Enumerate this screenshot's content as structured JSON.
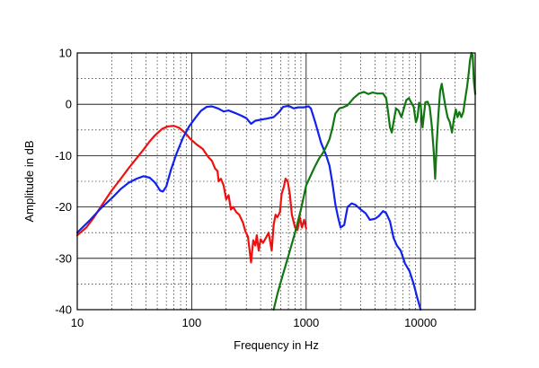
{
  "chart_data": {
    "type": "line",
    "title": "",
    "xlabel": "Frequency  in  Hz",
    "ylabel": "Amplitude in dB",
    "x_scale": "log",
    "xlim": [
      10,
      30000
    ],
    "ylim": [
      -40,
      10
    ],
    "grid": true,
    "x_tick_labels": [
      {
        "value": 10,
        "label": "10"
      },
      {
        "value": 100,
        "label": "100"
      },
      {
        "value": 1000,
        "label": "1000"
      },
      {
        "value": 10000,
        "label": "10000"
      }
    ],
    "y_tick_labels": [
      {
        "value": 10,
        "label": "10"
      },
      {
        "value": 0,
        "label": "0"
      },
      {
        "value": -10,
        "label": "-10"
      },
      {
        "value": -20,
        "label": "-20"
      },
      {
        "value": -30,
        "label": "-30"
      },
      {
        "value": -40,
        "label": "-40"
      }
    ],
    "series": [
      {
        "color": "#ee1111",
        "points": [
          [
            10,
            -25.5
          ],
          [
            12,
            -24
          ],
          [
            14,
            -22
          ],
          [
            16,
            -20
          ],
          [
            18,
            -18.3
          ],
          [
            20,
            -16.8
          ],
          [
            24,
            -14.5
          ],
          [
            28,
            -12.5
          ],
          [
            33,
            -10.5
          ],
          [
            38,
            -8.8
          ],
          [
            43,
            -7.2
          ],
          [
            48,
            -6
          ],
          [
            55,
            -4.8
          ],
          [
            62,
            -4.3
          ],
          [
            70,
            -4.2
          ],
          [
            78,
            -4.6
          ],
          [
            88,
            -5.6
          ],
          [
            98,
            -6.8
          ],
          [
            110,
            -7.8
          ],
          [
            125,
            -8.7
          ],
          [
            140,
            -10.3
          ],
          [
            150,
            -11
          ],
          [
            160,
            -12.5
          ],
          [
            168,
            -13
          ],
          [
            172,
            -15
          ],
          [
            180,
            -14.5
          ],
          [
            190,
            -15.8
          ],
          [
            200,
            -18.5
          ],
          [
            210,
            -17.7
          ],
          [
            220,
            -20.5
          ],
          [
            230,
            -20
          ],
          [
            245,
            -21
          ],
          [
            260,
            -21.5
          ],
          [
            280,
            -23
          ],
          [
            295,
            -24.8
          ],
          [
            310,
            -25.8
          ],
          [
            330,
            -30.8
          ],
          [
            345,
            -26.5
          ],
          [
            360,
            -27.5
          ],
          [
            370,
            -25.5
          ],
          [
            385,
            -28.5
          ],
          [
            400,
            -26.3
          ],
          [
            420,
            -27
          ],
          [
            450,
            -25.8
          ],
          [
            470,
            -25
          ],
          [
            500,
            -28.5
          ],
          [
            520,
            -23.5
          ],
          [
            540,
            -21.5
          ],
          [
            560,
            -22
          ],
          [
            590,
            -21
          ],
          [
            610,
            -17.5
          ],
          [
            640,
            -16
          ],
          [
            660,
            -14.5
          ],
          [
            690,
            -15
          ],
          [
            720,
            -17.5
          ],
          [
            750,
            -21.5
          ],
          [
            800,
            -24
          ],
          [
            840,
            -24.5
          ],
          [
            880,
            -22
          ],
          [
            920,
            -24
          ],
          [
            960,
            -22.5
          ],
          [
            1000,
            -24.2
          ]
        ]
      },
      {
        "color": "#1122ee",
        "points": [
          [
            10,
            -25
          ],
          [
            13,
            -22.5
          ],
          [
            16,
            -20.3
          ],
          [
            20,
            -18.3
          ],
          [
            24,
            -16.5
          ],
          [
            28,
            -15.3
          ],
          [
            33,
            -14.5
          ],
          [
            38,
            -14
          ],
          [
            43,
            -14.3
          ],
          [
            48,
            -15.3
          ],
          [
            53,
            -16.8
          ],
          [
            56,
            -17
          ],
          [
            60,
            -16
          ],
          [
            66,
            -12.7
          ],
          [
            74,
            -9.5
          ],
          [
            84,
            -6.5
          ],
          [
            95,
            -4.3
          ],
          [
            108,
            -2.6
          ],
          [
            120,
            -1.3
          ],
          [
            135,
            -0.5
          ],
          [
            150,
            -0.4
          ],
          [
            170,
            -0.8
          ],
          [
            190,
            -1.4
          ],
          [
            210,
            -1.2
          ],
          [
            240,
            -1.7
          ],
          [
            270,
            -2.2
          ],
          [
            300,
            -2.7
          ],
          [
            330,
            -3.8
          ],
          [
            360,
            -3.2
          ],
          [
            400,
            -3
          ],
          [
            450,
            -2.8
          ],
          [
            520,
            -2.5
          ],
          [
            580,
            -1.5
          ],
          [
            630,
            -0.5
          ],
          [
            700,
            -0.3
          ],
          [
            780,
            -0.8
          ],
          [
            850,
            -0.6
          ],
          [
            950,
            -0.6
          ],
          [
            1000,
            -0.5
          ],
          [
            1050,
            -0.4
          ],
          [
            1100,
            -0.8
          ],
          [
            1200,
            -3.5
          ],
          [
            1350,
            -7.5
          ],
          [
            1500,
            -10
          ],
          [
            1600,
            -12
          ],
          [
            1700,
            -15.5
          ],
          [
            1800,
            -19.5
          ],
          [
            1900,
            -22
          ],
          [
            2000,
            -24
          ],
          [
            2150,
            -23.5
          ],
          [
            2300,
            -20
          ],
          [
            2500,
            -19.3
          ],
          [
            2700,
            -19.6
          ],
          [
            3000,
            -20.5
          ],
          [
            3300,
            -21.2
          ],
          [
            3600,
            -22.5
          ],
          [
            4000,
            -22.3
          ],
          [
            4300,
            -21.8
          ],
          [
            4700,
            -20.8
          ],
          [
            5000,
            -21.2
          ],
          [
            5400,
            -22.8
          ],
          [
            5800,
            -26
          ],
          [
            6200,
            -27.5
          ],
          [
            6700,
            -28.5
          ],
          [
            7300,
            -31
          ],
          [
            8000,
            -32.5
          ],
          [
            8700,
            -35
          ],
          [
            9300,
            -37.5
          ],
          [
            10000,
            -40
          ]
        ]
      },
      {
        "color": "#117711",
        "points": [
          [
            520,
            -40
          ],
          [
            560,
            -37
          ],
          [
            620,
            -33.5
          ],
          [
            700,
            -29.5
          ],
          [
            800,
            -25
          ],
          [
            900,
            -20.5
          ],
          [
            1000,
            -15.8
          ],
          [
            1100,
            -13.8
          ],
          [
            1200,
            -12
          ],
          [
            1300,
            -10.5
          ],
          [
            1400,
            -9.5
          ],
          [
            1500,
            -8.2
          ],
          [
            1600,
            -6.8
          ],
          [
            1700,
            -4.5
          ],
          [
            1800,
            -1.8
          ],
          [
            1950,
            -0.8
          ],
          [
            2100,
            -0.6
          ],
          [
            2300,
            -0.2
          ],
          [
            2600,
            1.2
          ],
          [
            2900,
            2.1
          ],
          [
            3200,
            2.4
          ],
          [
            3500,
            2
          ],
          [
            3800,
            2.3
          ],
          [
            4200,
            2.1
          ],
          [
            4700,
            2.1
          ],
          [
            5000,
            1.2
          ],
          [
            5200,
            -1.5
          ],
          [
            5400,
            -4.5
          ],
          [
            5600,
            -5.5
          ],
          [
            5800,
            -3.5
          ],
          [
            6100,
            -0.8
          ],
          [
            6400,
            -1.2
          ],
          [
            6800,
            -2.5
          ],
          [
            7100,
            -1
          ],
          [
            7500,
            0.8
          ],
          [
            7900,
            1.2
          ],
          [
            8300,
            0.3
          ],
          [
            8700,
            -0.5
          ],
          [
            9100,
            -3.5
          ],
          [
            9400,
            -2.5
          ],
          [
            9700,
            0.3
          ],
          [
            10000,
            0
          ],
          [
            10400,
            -4.5
          ],
          [
            10700,
            -2
          ],
          [
            11000,
            0.4
          ],
          [
            11500,
            0.5
          ],
          [
            12000,
            -0.5
          ],
          [
            12500,
            -4
          ],
          [
            13000,
            -9
          ],
          [
            13400,
            -14.5
          ],
          [
            13800,
            -8
          ],
          [
            14300,
            -2
          ],
          [
            14800,
            2.5
          ],
          [
            15300,
            4
          ],
          [
            15800,
            2
          ],
          [
            16500,
            -0.5
          ],
          [
            17200,
            -2.5
          ],
          [
            18000,
            -3.5
          ],
          [
            18800,
            -5.5
          ],
          [
            19500,
            -3
          ],
          [
            20300,
            -1
          ],
          [
            21000,
            -2.5
          ],
          [
            21800,
            -1.5
          ],
          [
            22700,
            -2.5
          ],
          [
            23600,
            -1.5
          ],
          [
            24500,
            1
          ],
          [
            25500,
            3.5
          ],
          [
            26300,
            6
          ],
          [
            27000,
            8.5
          ],
          [
            27800,
            10
          ],
          [
            28500,
            9.5
          ],
          [
            29200,
            4.5
          ],
          [
            30000,
            2
          ]
        ]
      }
    ]
  }
}
